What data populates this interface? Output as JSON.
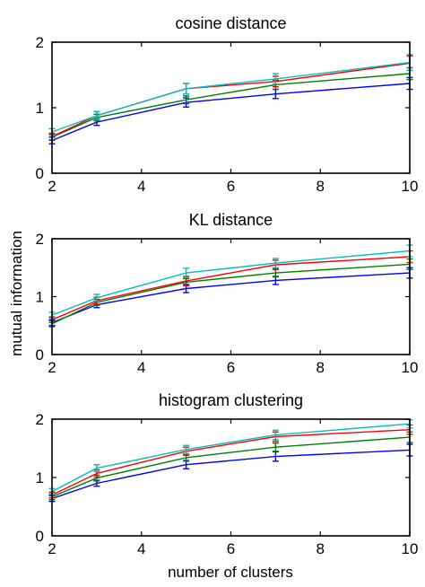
{
  "figure": {
    "ylabel": "mutual information",
    "xlabel": "number of clusters"
  },
  "chart_data": [
    {
      "type": "line",
      "title": "cosine distance",
      "xlabel": "",
      "ylabel": "",
      "xlim": [
        2,
        10
      ],
      "ylim": [
        0,
        2
      ],
      "x_ticks": [
        2,
        4,
        6,
        8,
        10
      ],
      "y_ticks": [
        0,
        1,
        2
      ],
      "x": [
        2,
        3,
        5,
        7,
        10
      ],
      "series": [
        {
          "color": "#0000ff",
          "values": [
            0.5,
            0.78,
            1.08,
            1.21,
            1.37
          ],
          "errors": [
            0.05,
            0.05,
            0.07,
            0.07,
            0.09
          ]
        },
        {
          "color": "#008000",
          "values": [
            0.55,
            0.85,
            1.12,
            1.35,
            1.52
          ],
          "errors": [
            0.05,
            0.05,
            0.06,
            0.07,
            0.09
          ]
        },
        {
          "color": "#ff0000",
          "values": [
            0.56,
            0.88,
            1.29,
            1.4,
            1.68
          ],
          "errors": [
            0.05,
            0.06,
            0.08,
            0.08,
            0.11
          ]
        },
        {
          "color": "#00bfbf",
          "values": [
            0.63,
            0.88,
            1.29,
            1.44,
            1.69
          ],
          "errors": [
            0.05,
            0.06,
            0.08,
            0.08,
            0.12
          ]
        }
      ]
    },
    {
      "type": "line",
      "title": "KL distance",
      "xlabel": "",
      "ylabel": "",
      "xlim": [
        2,
        10
      ],
      "ylim": [
        0,
        2
      ],
      "x_ticks": [
        2,
        4,
        6,
        8,
        10
      ],
      "y_ticks": [
        0,
        1,
        2
      ],
      "x": [
        2,
        3,
        5,
        7,
        10
      ],
      "series": [
        {
          "color": "#0000ff",
          "values": [
            0.55,
            0.86,
            1.14,
            1.28,
            1.41
          ],
          "errors": [
            0.05,
            0.05,
            0.07,
            0.07,
            0.09
          ]
        },
        {
          "color": "#008000",
          "values": [
            0.53,
            0.9,
            1.25,
            1.41,
            1.56
          ],
          "errors": [
            0.05,
            0.05,
            0.06,
            0.07,
            0.09
          ]
        },
        {
          "color": "#ff0000",
          "values": [
            0.6,
            0.93,
            1.27,
            1.55,
            1.69
          ],
          "errors": [
            0.05,
            0.06,
            0.08,
            0.08,
            0.1
          ]
        },
        {
          "color": "#00bfbf",
          "values": [
            0.68,
            0.98,
            1.41,
            1.58,
            1.79
          ],
          "errors": [
            0.05,
            0.06,
            0.08,
            0.08,
            0.1
          ]
        }
      ]
    },
    {
      "type": "line",
      "title": "histogram clustering",
      "xlabel": "number of clusters",
      "ylabel": "",
      "xlim": [
        2,
        10
      ],
      "ylim": [
        0,
        2
      ],
      "x_ticks": [
        2,
        4,
        6,
        8,
        10
      ],
      "y_ticks": [
        0,
        1,
        2
      ],
      "x": [
        2,
        3,
        5,
        7,
        10
      ],
      "series": [
        {
          "color": "#0000ff",
          "values": [
            0.64,
            0.9,
            1.22,
            1.36,
            1.47
          ],
          "errors": [
            0.05,
            0.05,
            0.07,
            0.08,
            0.1
          ]
        },
        {
          "color": "#008000",
          "values": [
            0.67,
            0.99,
            1.34,
            1.52,
            1.69
          ],
          "errors": [
            0.05,
            0.05,
            0.06,
            0.07,
            0.09
          ]
        },
        {
          "color": "#ff0000",
          "values": [
            0.7,
            1.07,
            1.45,
            1.7,
            1.82
          ],
          "errors": [
            0.05,
            0.06,
            0.07,
            0.08,
            0.08
          ]
        },
        {
          "color": "#00bfbf",
          "values": [
            0.76,
            1.16,
            1.48,
            1.73,
            1.92
          ],
          "errors": [
            0.05,
            0.06,
            0.07,
            0.08,
            0.07
          ]
        }
      ]
    }
  ]
}
